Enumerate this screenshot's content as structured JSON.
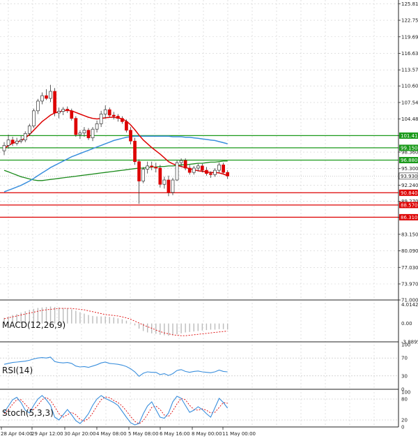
{
  "chart_data": [
    {
      "type": "candlestick",
      "name": "price",
      "ylim": [
        71.0,
        126.5
      ],
      "y_ticks": [
        "125.810",
        "122.750",
        "119.690",
        "116.630",
        "113.570",
        "110.600",
        "107.540",
        "104.480",
        "101.410",
        "98.360",
        "95.300",
        "92.240",
        "89.270",
        "86.310",
        "83.150",
        "80.090",
        "77.030",
        "73.970",
        "71.000"
      ],
      "x_tick_labels": [
        "28 Apr 04:00",
        "29 Apr 12:00",
        "30 Apr 20:00",
        "4 May 08:00",
        "5 May 08:00",
        "6 May 16:00",
        "8 May 00:00",
        "11 May 00:00"
      ],
      "candles": [
        [
          98.6,
          100.2,
          97.8,
          99.6
        ],
        [
          99.6,
          101.6,
          99.0,
          100.6
        ],
        [
          100.6,
          101.2,
          99.5,
          100.0
        ],
        [
          100.0,
          101.0,
          99.6,
          100.4
        ],
        [
          100.4,
          101.4,
          100.0,
          100.6
        ],
        [
          100.6,
          102.2,
          100.2,
          101.8
        ],
        [
          101.8,
          103.6,
          101.4,
          103.2
        ],
        [
          103.2,
          106.4,
          102.8,
          106.0
        ],
        [
          106.0,
          108.2,
          105.4,
          107.8
        ],
        [
          107.8,
          109.4,
          107.2,
          108.8
        ],
        [
          108.8,
          110.0,
          108.0,
          108.3
        ],
        [
          108.3,
          110.8,
          107.6,
          109.6
        ],
        [
          109.6,
          110.2,
          105.0,
          105.6
        ],
        [
          105.6,
          106.6,
          104.6,
          105.9
        ],
        [
          105.9,
          106.7,
          105.2,
          106.3
        ],
        [
          106.3,
          106.8,
          105.6,
          106.0
        ],
        [
          106.0,
          106.4,
          104.2,
          104.6
        ],
        [
          104.6,
          105.0,
          101.2,
          101.6
        ],
        [
          101.6,
          102.4,
          100.8,
          101.9
        ],
        [
          101.9,
          103.0,
          101.2,
          102.4
        ],
        [
          102.4,
          102.8,
          100.6,
          101.0
        ],
        [
          101.0,
          103.0,
          100.4,
          102.6
        ],
        [
          102.6,
          104.2,
          102.0,
          103.6
        ],
        [
          103.6,
          106.0,
          103.0,
          105.4
        ],
        [
          105.4,
          107.0,
          104.6,
          106.2
        ],
        [
          106.2,
          106.6,
          104.8,
          105.2
        ],
        [
          105.2,
          105.8,
          104.4,
          105.0
        ],
        [
          105.0,
          105.4,
          104.0,
          104.6
        ],
        [
          104.6,
          105.0,
          103.6,
          104.0
        ],
        [
          104.0,
          104.4,
          102.0,
          102.4
        ],
        [
          102.4,
          103.0,
          99.8,
          100.4
        ],
        [
          100.4,
          101.0,
          96.0,
          96.6
        ],
        [
          96.6,
          97.0,
          88.8,
          93.0
        ],
        [
          93.0,
          95.6,
          92.6,
          95.2
        ],
        [
          95.2,
          96.6,
          94.4,
          95.8
        ],
        [
          95.8,
          96.6,
          95.0,
          95.6
        ],
        [
          95.6,
          96.4,
          94.6,
          95.4
        ],
        [
          95.4,
          96.0,
          91.8,
          92.4
        ],
        [
          92.4,
          93.8,
          91.6,
          93.2
        ],
        [
          93.2,
          94.0,
          90.2,
          90.9
        ],
        [
          90.9,
          93.6,
          90.4,
          93.2
        ],
        [
          93.2,
          96.8,
          93.0,
          96.4
        ],
        [
          96.4,
          97.2,
          95.6,
          96.8
        ],
        [
          96.8,
          97.2,
          95.0,
          95.4
        ],
        [
          95.4,
          96.0,
          94.2,
          94.6
        ],
        [
          94.6,
          95.8,
          94.2,
          95.4
        ],
        [
          95.4,
          96.2,
          94.8,
          95.8
        ],
        [
          95.8,
          96.2,
          94.6,
          95.0
        ],
        [
          95.0,
          95.6,
          94.0,
          94.4
        ],
        [
          94.4,
          94.8,
          93.6,
          94.2
        ],
        [
          94.2,
          95.4,
          93.8,
          95.0
        ],
        [
          95.0,
          96.4,
          94.6,
          96.0
        ],
        [
          96.0,
          96.4,
          94.4,
          94.6
        ],
        [
          94.6,
          95.0,
          93.4,
          93.93
        ]
      ],
      "ma_red": [
        99.0,
        99.6,
        100.0,
        100.2,
        100.5,
        101.0,
        101.6,
        102.4,
        103.2,
        104.0,
        104.6,
        105.2,
        105.6,
        105.8,
        106.0,
        106.1,
        106.0,
        105.7,
        105.4,
        105.1,
        104.8,
        104.6,
        104.5,
        104.6,
        104.7,
        104.8,
        104.8,
        104.7,
        104.5,
        104.1,
        103.4,
        102.5,
        101.5,
        100.6,
        99.9,
        99.2,
        98.6,
        98.0,
        97.3,
        96.6,
        96.2,
        95.9,
        95.7,
        95.5,
        95.3,
        95.1,
        94.9,
        94.8,
        94.7,
        94.6,
        94.6,
        94.5,
        94.3,
        94.0
      ],
      "ma_blue": [
        91.0,
        91.3,
        91.6,
        91.9,
        92.2,
        92.6,
        93.0,
        93.5,
        94.0,
        94.5,
        95.0,
        95.5,
        95.9,
        96.3,
        96.7,
        97.1,
        97.5,
        97.8,
        98.1,
        98.4,
        98.7,
        99.0,
        99.3,
        99.6,
        99.9,
        100.2,
        100.5,
        100.7,
        100.9,
        101.1,
        101.2,
        101.3,
        101.3,
        101.3,
        101.3,
        101.3,
        101.3,
        101.3,
        101.3,
        101.3,
        101.2,
        101.2,
        101.2,
        101.1,
        101.1,
        101.0,
        100.9,
        100.8,
        100.7,
        100.6,
        100.5,
        100.3,
        100.1,
        99.9
      ],
      "ma_green": [
        95.0,
        94.7,
        94.4,
        94.1,
        93.8,
        93.6,
        93.4,
        93.2,
        93.1,
        93.1,
        93.2,
        93.3,
        93.4,
        93.5,
        93.6,
        93.7,
        93.8,
        93.9,
        94.0,
        94.1,
        94.2,
        94.3,
        94.4,
        94.5,
        94.6,
        94.7,
        94.8,
        94.9,
        95.0,
        95.1,
        95.2,
        95.3,
        95.4,
        95.4,
        95.5,
        95.6,
        95.6,
        95.7,
        95.7,
        95.8,
        95.8,
        95.9,
        96.0,
        96.0,
        96.1,
        96.2,
        96.3,
        96.3,
        96.4,
        96.5,
        96.5,
        96.6,
        96.7,
        96.7
      ],
      "levels": [
        {
          "value": 101.41,
          "label": "101.410",
          "color": "#1a9a1a"
        },
        {
          "value": 99.15,
          "label": "99.150",
          "color": "#1a9a1a"
        },
        {
          "value": 96.88,
          "label": "96.880",
          "color": "#1a9a1a"
        },
        {
          "value": 90.84,
          "label": "90.840",
          "color": "#dd0000"
        },
        {
          "value": 88.57,
          "label": "88.570",
          "color": "#dd0000"
        },
        {
          "value": 86.31,
          "label": "86.310",
          "color": "#dd0000"
        }
      ],
      "current_price": {
        "value": 93.93,
        "label": "93.930"
      },
      "colors": {
        "up": "#1a9a1a",
        "down": "#dd0000",
        "ma_red": "#dd0000",
        "ma_blue": "#3a8fdd",
        "ma_green": "#1a8a1a"
      }
    },
    {
      "type": "histogram",
      "name": "macd",
      "label": "MACD(12,26,9)",
      "ylim": [
        -3.9,
        4.4
      ],
      "y_ticks": [
        "4.0142",
        "0.00",
        "-3.8895"
      ],
      "hist": [
        1.2,
        1.5,
        1.8,
        2.0,
        2.3,
        2.6,
        2.9,
        3.1,
        3.3,
        3.4,
        3.5,
        3.6,
        3.5,
        3.4,
        3.3,
        3.2,
        3.0,
        2.7,
        2.4,
        2.1,
        1.8,
        1.6,
        1.5,
        1.5,
        1.5,
        1.4,
        1.3,
        1.1,
        0.9,
        0.6,
        0.2,
        -0.4,
        -1.1,
        -1.6,
        -1.9,
        -2.1,
        -2.2,
        -2.4,
        -2.5,
        -2.6,
        -2.5,
        -2.3,
        -2.1,
        -1.9,
        -1.8,
        -1.7,
        -1.6,
        -1.5,
        -1.4,
        -1.3,
        -1.3,
        -1.2,
        -1.2,
        -1.3
      ],
      "signal": [
        1.0,
        1.2,
        1.4,
        1.6,
        1.8,
        2.0,
        2.2,
        2.4,
        2.6,
        2.8,
        2.9,
        3.0,
        3.1,
        3.2,
        3.2,
        3.2,
        3.2,
        3.1,
        3.0,
        2.9,
        2.7,
        2.5,
        2.3,
        2.1,
        1.9,
        1.8,
        1.7,
        1.6,
        1.4,
        1.2,
        0.9,
        0.5,
        0.1,
        -0.3,
        -0.7,
        -1.0,
        -1.4,
        -1.7,
        -2.0,
        -2.2,
        -2.4,
        -2.5,
        -2.6,
        -2.6,
        -2.5,
        -2.4,
        -2.3,
        -2.2,
        -2.1,
        -2.0,
        -1.9,
        -1.8,
        -1.7,
        -1.6
      ],
      "colors": {
        "hist": "#bbbbbb",
        "signal": "#dd0000"
      }
    },
    {
      "type": "line",
      "name": "rsi",
      "label": "RSI(14)",
      "ylim": [
        0,
        100
      ],
      "y_ticks": [
        "100",
        "70",
        "30",
        "0"
      ],
      "values": [
        56,
        58,
        60,
        61,
        62,
        63,
        65,
        68,
        70,
        71,
        70,
        72,
        62,
        60,
        59,
        60,
        58,
        52,
        50,
        51,
        49,
        52,
        55,
        59,
        61,
        58,
        57,
        56,
        54,
        51,
        46,
        39,
        29,
        36,
        39,
        38,
        38,
        33,
        35,
        31,
        35,
        42,
        44,
        40,
        38,
        40,
        41,
        39,
        38,
        37,
        39,
        43,
        40,
        39
      ],
      "colors": {
        "line": "#3a8fdd"
      }
    },
    {
      "type": "line",
      "name": "stoch",
      "label": "Stoch(5,3,3)",
      "ylim": [
        0,
        100
      ],
      "y_ticks": [
        "100",
        "80",
        "20",
        "0"
      ],
      "k": [
        42,
        60,
        78,
        85,
        70,
        48,
        40,
        62,
        80,
        90,
        78,
        62,
        28,
        20,
        35,
        50,
        35,
        18,
        10,
        22,
        38,
        62,
        80,
        90,
        82,
        76,
        70,
        62,
        45,
        28,
        12,
        6,
        10,
        38,
        60,
        72,
        50,
        28,
        25,
        40,
        72,
        88,
        82,
        62,
        42,
        48,
        58,
        50,
        38,
        28,
        55,
        82,
        70,
        54
      ],
      "d": [
        38,
        50,
        65,
        78,
        78,
        65,
        52,
        50,
        62,
        78,
        85,
        76,
        58,
        38,
        28,
        35,
        42,
        35,
        22,
        17,
        24,
        40,
        60,
        78,
        86,
        84,
        76,
        70,
        60,
        46,
        30,
        16,
        9,
        18,
        36,
        56,
        60,
        50,
        34,
        30,
        46,
        66,
        82,
        78,
        62,
        50,
        48,
        52,
        48,
        40,
        42,
        56,
        70,
        68
      ],
      "colors": {
        "k": "#3a8fdd",
        "d": "#dd0000"
      }
    }
  ]
}
